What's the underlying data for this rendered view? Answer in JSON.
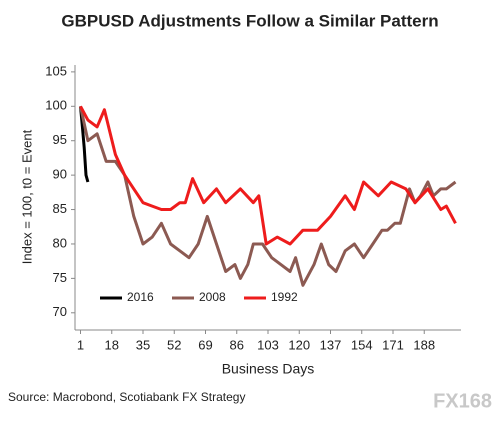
{
  "chart_data": {
    "type": "line",
    "title": "GBPUSD Adjustments Follow a Similar Pattern",
    "ylabel": "Index = 100, t0 = Event",
    "xlabel": "Business Days",
    "source": "Source: Macrobond, Scotiabank FX Strategy",
    "watermark": "FX168",
    "xlim": [
      -2,
      208
    ],
    "xticks": [
      1,
      18,
      35,
      52,
      69,
      86,
      103,
      120,
      137,
      154,
      171,
      188
    ],
    "ylim": [
      67.5,
      106
    ],
    "yticks": [
      70,
      75,
      80,
      85,
      90,
      95,
      100,
      105
    ],
    "legend": "bottom-left",
    "series": [
      {
        "name": "2016",
        "color": "#000000",
        "x": [
          1,
          2,
          3,
          4,
          5
        ],
        "values": [
          100,
          97,
          94,
          90,
          89
        ]
      },
      {
        "name": "2008",
        "color": "#8c5a52",
        "x": [
          1,
          5,
          10,
          15,
          20,
          25,
          30,
          35,
          40,
          45,
          50,
          55,
          60,
          65,
          70,
          75,
          80,
          85,
          88,
          92,
          95,
          100,
          105,
          110,
          115,
          118,
          122,
          128,
          132,
          136,
          140,
          145,
          150,
          155,
          160,
          165,
          168,
          172,
          175,
          180,
          183,
          186,
          190,
          193,
          197,
          200,
          205
        ],
        "values": [
          100,
          95,
          96,
          92,
          92,
          90,
          84,
          80,
          81,
          83,
          80,
          79,
          78,
          80,
          84,
          80,
          76,
          77,
          75,
          77,
          80,
          80,
          78,
          77,
          76,
          78,
          74,
          77,
          80,
          77,
          76,
          79,
          80,
          78,
          80,
          82,
          82,
          83,
          83,
          88,
          86,
          87,
          89,
          87,
          88,
          88,
          89
        ]
      },
      {
        "name": "1992",
        "color": "#ee1c1c",
        "x": [
          1,
          5,
          10,
          14,
          20,
          25,
          30,
          35,
          40,
          45,
          50,
          55,
          58,
          62,
          68,
          75,
          80,
          88,
          95,
          98,
          102,
          108,
          115,
          122,
          130,
          137,
          145,
          150,
          155,
          163,
          170,
          178,
          183,
          190,
          197,
          200,
          205
        ],
        "values": [
          100,
          98,
          97,
          99.5,
          93,
          90,
          88,
          86,
          85.5,
          85,
          85,
          86,
          86,
          89.5,
          86,
          88,
          86,
          88,
          86,
          87,
          80,
          81,
          80,
          82,
          82,
          84,
          87,
          85,
          89,
          87,
          89,
          88,
          86,
          88,
          85,
          85.5,
          83
        ]
      }
    ]
  }
}
